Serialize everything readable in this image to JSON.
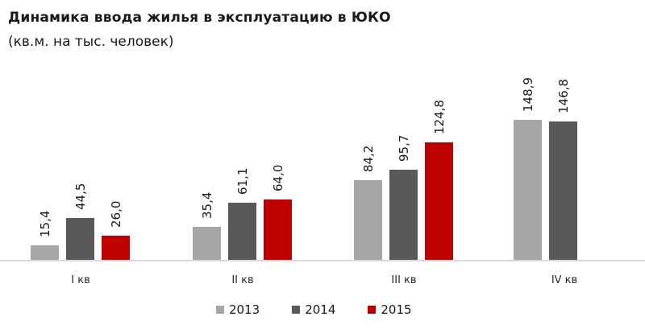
{
  "header": {
    "title": "Динамика  ввода  жилья  в эксплуатацию  в ЮКО",
    "subtitle": "(кв.м. на тыс. человек)"
  },
  "colors": {
    "2013": "#a6a6a6",
    "2014": "#595959",
    "2015": "#c00000",
    "baseline": "#d9d9d9"
  },
  "categories": [
    "I кв",
    "II кв",
    "III кв",
    "IV кв"
  ],
  "legend": [
    {
      "label": "2013",
      "color": "#a6a6a6"
    },
    {
      "label": "2014",
      "color": "#595959"
    },
    {
      "label": "2015",
      "color": "#c00000"
    }
  ],
  "labels": {
    "g0": [
      "15,4",
      "44,5",
      "26,0"
    ],
    "g1": [
      "35,4",
      "61,1",
      "64,0"
    ],
    "g2": [
      "84,2",
      "95,7",
      "124,8"
    ],
    "g3": [
      "148,9",
      "146,8"
    ]
  },
  "chart_data": {
    "type": "bar",
    "title": "Динамика ввода жилья в эксплуатацию в ЮКО",
    "subtitle": "(кв.м. на тыс. человек)",
    "categories": [
      "I кв",
      "II кв",
      "III кв",
      "IV кв"
    ],
    "series": [
      {
        "name": "2013",
        "color": "#a6a6a6",
        "values": [
          15.4,
          35.4,
          84.2,
          148.9
        ]
      },
      {
        "name": "2014",
        "color": "#595959",
        "values": [
          44.5,
          61.1,
          95.7,
          146.8
        ]
      },
      {
        "name": "2015",
        "color": "#c00000",
        "values": [
          26.0,
          64.0,
          124.8,
          null
        ]
      }
    ],
    "xlabel": "",
    "ylabel": "",
    "data_labels": true,
    "data_label_rotation": -90,
    "grid": false,
    "y_axis_visible": false,
    "legend_position": "bottom"
  }
}
